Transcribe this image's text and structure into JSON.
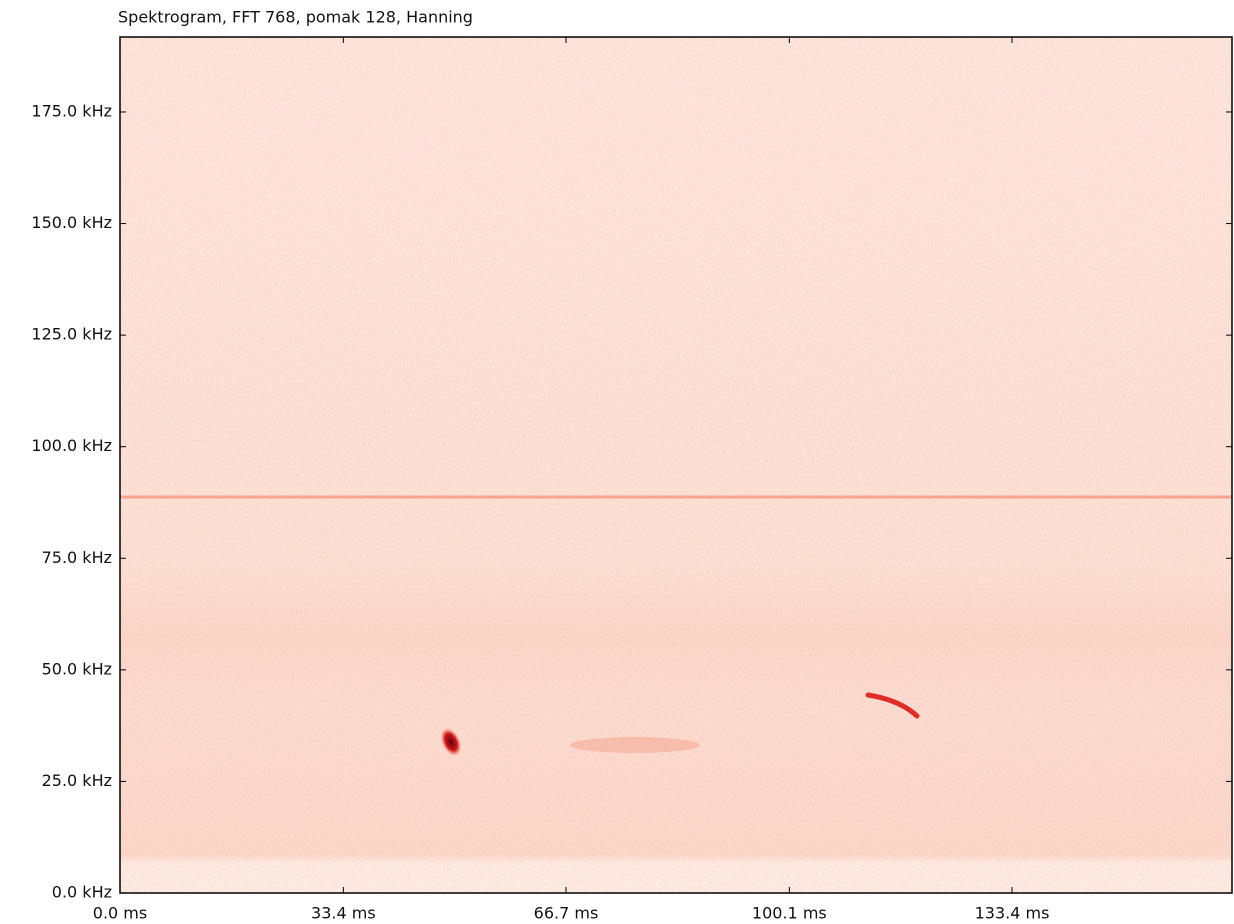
{
  "chart_data": {
    "type": "spectrogram",
    "title": "Spektrogram, FFT 768, pomak 128, Hanning",
    "xlim": [
      0,
      166.3
    ],
    "xticks": [
      {
        "value": 0,
        "label": "0.0 ms"
      },
      {
        "value": 33.4,
        "label": "33.4 ms"
      },
      {
        "value": 66.7,
        "label": "66.7 ms"
      },
      {
        "value": 100.1,
        "label": "100.1 ms"
      },
      {
        "value": 133.4,
        "label": "133.4 ms"
      }
    ],
    "ylim": [
      0,
      191.8
    ],
    "yticks": [
      {
        "value": 0,
        "label": "0.0 kHz"
      },
      {
        "value": 25,
        "label": "25.0 kHz"
      },
      {
        "value": 50,
        "label": "50.0 kHz"
      },
      {
        "value": 75,
        "label": "75.0 kHz"
      },
      {
        "value": 100,
        "label": "100.0 kHz"
      },
      {
        "value": 125,
        "label": "125.0 kHz"
      },
      {
        "value": 150,
        "label": "150.0 kHz"
      },
      {
        "value": 175,
        "label": "175.0 kHz"
      }
    ],
    "colormap": "Reds"
  }
}
